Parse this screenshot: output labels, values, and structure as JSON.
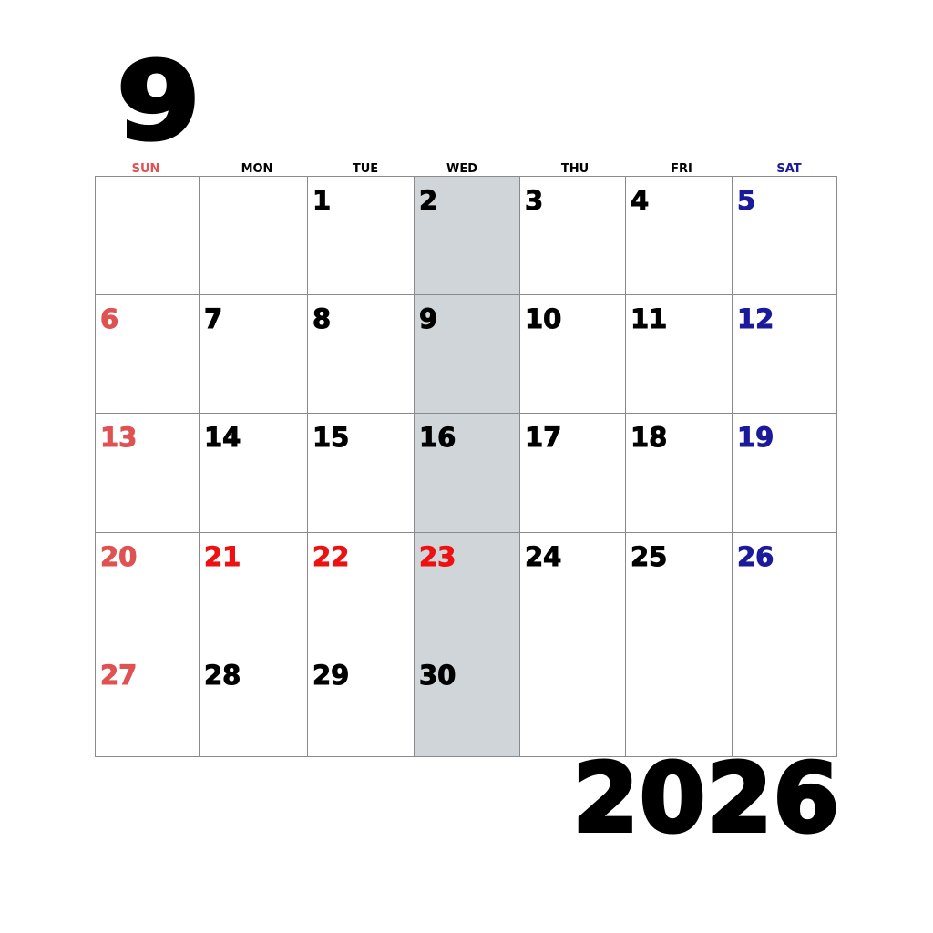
{
  "month": "9",
  "year": "2026",
  "colors": {
    "sunday": "#e05252",
    "holiday": "#ee1111",
    "saturday": "#1a1a9a",
    "weekday": "#000000",
    "highlight_column": "#cfd5d9"
  },
  "weekdays": [
    {
      "label": "SUN",
      "type": "sunday"
    },
    {
      "label": "MON",
      "type": "weekday"
    },
    {
      "label": "TUE",
      "type": "weekday"
    },
    {
      "label": "WED",
      "type": "weekday"
    },
    {
      "label": "THU",
      "type": "weekday"
    },
    {
      "label": "FRI",
      "type": "weekday"
    },
    {
      "label": "SAT",
      "type": "saturday"
    }
  ],
  "weeks": [
    [
      null,
      null,
      {
        "d": "1",
        "t": "weekday"
      },
      {
        "d": "2",
        "t": "weekday"
      },
      {
        "d": "3",
        "t": "weekday"
      },
      {
        "d": "4",
        "t": "weekday"
      },
      {
        "d": "5",
        "t": "saturday"
      }
    ],
    [
      {
        "d": "6",
        "t": "sunday"
      },
      {
        "d": "7",
        "t": "weekday"
      },
      {
        "d": "8",
        "t": "weekday"
      },
      {
        "d": "9",
        "t": "weekday"
      },
      {
        "d": "10",
        "t": "weekday"
      },
      {
        "d": "11",
        "t": "weekday"
      },
      {
        "d": "12",
        "t": "saturday"
      }
    ],
    [
      {
        "d": "13",
        "t": "sunday"
      },
      {
        "d": "14",
        "t": "weekday"
      },
      {
        "d": "15",
        "t": "weekday"
      },
      {
        "d": "16",
        "t": "weekday"
      },
      {
        "d": "17",
        "t": "weekday"
      },
      {
        "d": "18",
        "t": "weekday"
      },
      {
        "d": "19",
        "t": "saturday"
      }
    ],
    [
      {
        "d": "20",
        "t": "sunday"
      },
      {
        "d": "21",
        "t": "holiday"
      },
      {
        "d": "22",
        "t": "holiday"
      },
      {
        "d": "23",
        "t": "holiday"
      },
      {
        "d": "24",
        "t": "weekday"
      },
      {
        "d": "25",
        "t": "weekday"
      },
      {
        "d": "26",
        "t": "saturday"
      }
    ],
    [
      {
        "d": "27",
        "t": "sunday"
      },
      {
        "d": "28",
        "t": "weekday"
      },
      {
        "d": "29",
        "t": "weekday"
      },
      {
        "d": "30",
        "t": "weekday"
      },
      null,
      null,
      null
    ]
  ]
}
